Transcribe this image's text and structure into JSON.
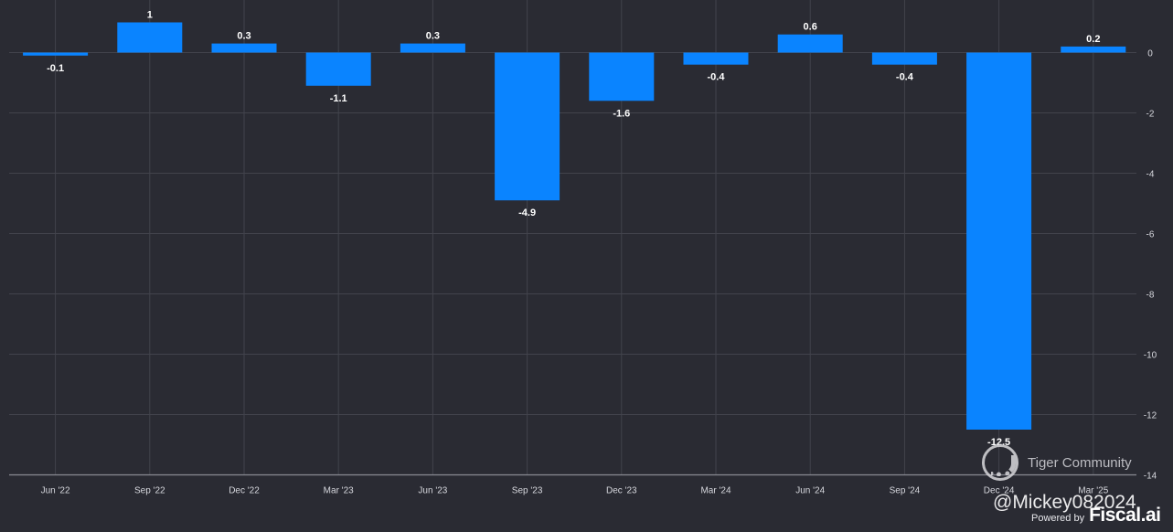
{
  "chart_data": {
    "type": "bar",
    "categories": [
      "Jun '22",
      "Sep '22",
      "Dec '22",
      "Mar '23",
      "Jun '23",
      "Sep '23",
      "Dec '23",
      "Mar '24",
      "Jun '24",
      "Sep '24",
      "Dec '24",
      "Mar '25"
    ],
    "values": [
      -0.1,
      1,
      0.3,
      -1.1,
      0.3,
      -4.9,
      -1.6,
      -0.4,
      0.6,
      -0.4,
      -12.5,
      0.2
    ],
    "value_labels": [
      "-0.1",
      "1",
      "0.3",
      "-1.1",
      "0.3",
      "-4.9",
      "-1.6",
      "-0.4",
      "0.6",
      "-0.4",
      "-12.5",
      "0.2"
    ],
    "yticks": [
      0,
      -2,
      -4,
      -6,
      -8,
      -10,
      -12,
      -14
    ],
    "ytick_labels": [
      "0",
      "-2",
      "-4",
      "-6",
      "-8",
      "-10",
      "-12",
      "-14"
    ],
    "ylim": [
      -14,
      1.7
    ],
    "y_axis_side": "right",
    "grid": true,
    "title": "",
    "xlabel": "",
    "ylabel": "",
    "bar_color": "#0a84ff"
  },
  "colors": {
    "background": "#2a2b33",
    "grid": "#42434c",
    "axis": "#8a8b93"
  },
  "watermark": {
    "community": "Tiger Community",
    "handle": "@Mickey082024",
    "powered_by": "Powered by",
    "brand": "Fiscal.ai"
  }
}
